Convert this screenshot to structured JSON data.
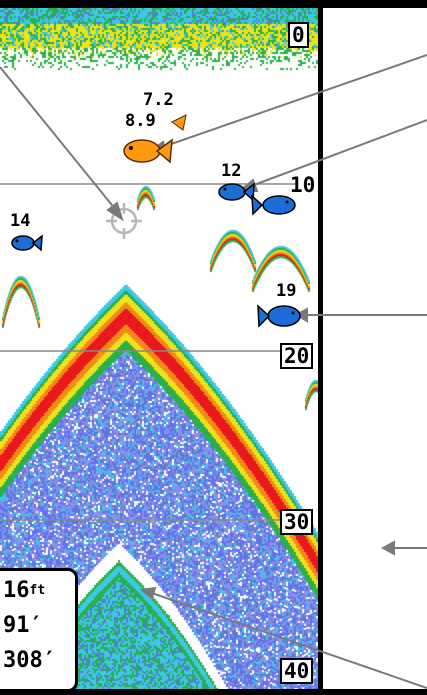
{
  "depth_scale": {
    "top": "0",
    "mark_10": "10",
    "mark_20": "20",
    "mark_30": "30",
    "bottom": "40"
  },
  "fish_markers": [
    {
      "label_1": "7.2",
      "label_2": "8.9"
    },
    {
      "label": "12"
    },
    {
      "label": "14"
    },
    {
      "label": "19"
    }
  ],
  "readout": {
    "depth_value": "16",
    "depth_unit": "ft",
    "line2": "91′",
    "line3": "308′"
  },
  "colors": {
    "red": "#e8181c",
    "orange": "#f08a18",
    "yellow": "#f0e21a",
    "green": "#28b04a",
    "cyan": "#3cc8e6",
    "blue": "#5a78d8",
    "lavender": "#8c8ce6",
    "fish_blue": "#1a6ed6",
    "fish_orange": "#ff9a10"
  },
  "icons": [
    "cursor-crosshair-icon",
    "fish-icon"
  ]
}
